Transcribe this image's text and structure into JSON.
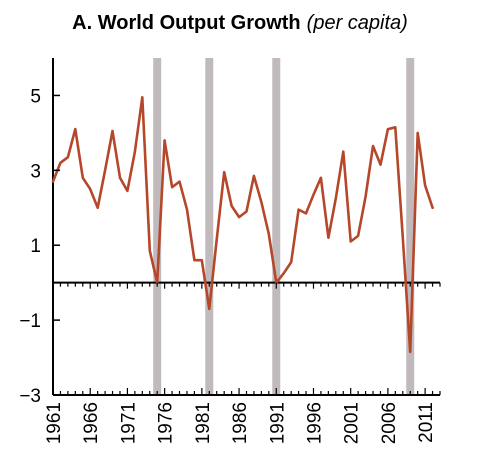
{
  "chart_data": {
    "type": "line",
    "title": "A. World Output Growth",
    "subtitle": "(per capita)",
    "xlabel": "",
    "ylabel": "",
    "xlim": [
      1961,
      2013
    ],
    "ylim": [
      -3,
      6
    ],
    "y_ticks": [
      5,
      3,
      1,
      -1,
      -3
    ],
    "y_tick_labels": [
      "5",
      "3",
      "1",
      "−1",
      "−3"
    ],
    "x_ticks": [
      1961,
      1966,
      1971,
      1976,
      1981,
      1986,
      1991,
      1996,
      2001,
      2006,
      2011
    ],
    "x_tick_labels": [
      "1961",
      "1966",
      "1971",
      "1976",
      "1981",
      "1986",
      "1991",
      "1996",
      "2001",
      "2006",
      "2011"
    ],
    "recession_years": [
      1975,
      1982,
      1991,
      2009
    ],
    "grid": false,
    "colors": {
      "line": "#b5472a",
      "recession_band": "#c1babd",
      "axis": "#000000"
    },
    "series": [
      {
        "x": [
          1961,
          1962,
          1963,
          1964,
          1965,
          1966,
          1967,
          1968,
          1969,
          1970,
          1971,
          1972,
          1973,
          1974,
          1975,
          1976,
          1977,
          1978,
          1979,
          1980,
          1981,
          1982,
          1983,
          1984,
          1985,
          1986,
          1987,
          1988,
          1989,
          1990,
          1991,
          1992,
          1993,
          1994,
          1995,
          1996,
          1997,
          1998,
          1999,
          2000,
          2001,
          2002,
          2003,
          2004,
          2005,
          2006,
          2007,
          2008,
          2009,
          2010,
          2011,
          2012
        ],
        "y": [
          2.7,
          3.2,
          3.35,
          4.1,
          2.8,
          2.5,
          2.0,
          3.0,
          4.05,
          2.8,
          2.45,
          3.5,
          4.95,
          0.85,
          0.0,
          3.8,
          2.55,
          2.7,
          1.95,
          0.6,
          0.6,
          -0.7,
          1.15,
          2.95,
          2.05,
          1.75,
          1.9,
          2.85,
          2.15,
          1.3,
          0.0,
          0.25,
          0.55,
          1.95,
          1.85,
          2.35,
          2.8,
          1.2,
          2.25,
          3.5,
          1.1,
          1.25,
          2.3,
          3.65,
          3.15,
          4.1,
          4.15,
          1.2,
          -1.85,
          4.0,
          2.6,
          2.0
        ]
      }
    ]
  }
}
